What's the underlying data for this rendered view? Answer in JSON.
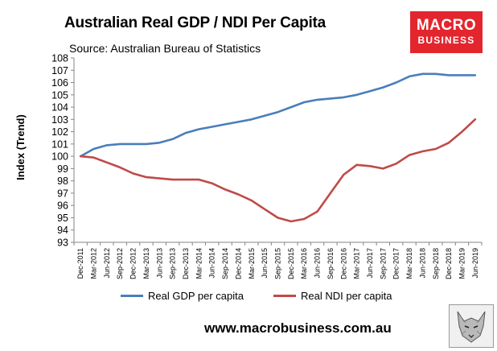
{
  "header": {
    "title": "Australian Real GDP / NDI Per Capita",
    "subtitle": "Source: Australian Bureau of Statistics"
  },
  "logo": {
    "line1": "MACRO",
    "line2": "BUSINESS"
  },
  "footer": {
    "website": "www.macrobusiness.com.au"
  },
  "colors": {
    "gdp": "#4a7ebb",
    "ndi": "#be4b48",
    "logo_bg": "#e3262e"
  },
  "chart_data": {
    "type": "line",
    "title": "Australian Real GDP / NDI Per Capita",
    "xlabel": "",
    "ylabel": "Index (Trend)",
    "ylim": [
      93,
      108
    ],
    "yticks": [
      93,
      94,
      95,
      96,
      97,
      98,
      99,
      100,
      101,
      102,
      103,
      104,
      105,
      106,
      107,
      108
    ],
    "grid": false,
    "legend_position": "bottom",
    "categories": [
      "Dec-2011",
      "Mar-2012",
      "Jun-2012",
      "Sep-2012",
      "Dec-2012",
      "Mar-2013",
      "Jun-2013",
      "Sep-2013",
      "Dec-2013",
      "Mar-2014",
      "Jun-2014",
      "Sep-2014",
      "Dec-2014",
      "Mar-2015",
      "Jun-2015",
      "Sep-2015",
      "Dec-2015",
      "Mar-2016",
      "Jun-2016",
      "Sep-2016",
      "Dec-2016",
      "Mar-2017",
      "Jun-2017",
      "Sep-2017",
      "Dec-2017",
      "Mar-2018",
      "Jun-2018",
      "Sep-2018",
      "Dec-2018",
      "Mar-2019",
      "Jun-2019"
    ],
    "series": [
      {
        "name": "Real GDP per capita",
        "color": "#4a7ebb",
        "values": [
          100.0,
          100.6,
          100.9,
          101.0,
          101.0,
          101.0,
          101.1,
          101.4,
          101.9,
          102.2,
          102.4,
          102.6,
          102.8,
          103.0,
          103.3,
          103.6,
          104.0,
          104.4,
          104.6,
          104.7,
          104.8,
          105.0,
          105.3,
          105.6,
          106.0,
          106.5,
          106.7,
          106.7,
          106.6,
          106.6,
          106.6
        ]
      },
      {
        "name": "Real NDI per capita",
        "color": "#be4b48",
        "values": [
          100.0,
          99.9,
          99.5,
          99.1,
          98.6,
          98.3,
          98.2,
          98.1,
          98.1,
          98.1,
          97.8,
          97.3,
          96.9,
          96.4,
          95.7,
          95.0,
          94.7,
          94.9,
          95.5,
          97.0,
          98.5,
          99.3,
          99.2,
          99.0,
          99.4,
          100.1,
          100.4,
          100.6,
          101.1,
          102.0,
          103.0
        ]
      }
    ]
  }
}
